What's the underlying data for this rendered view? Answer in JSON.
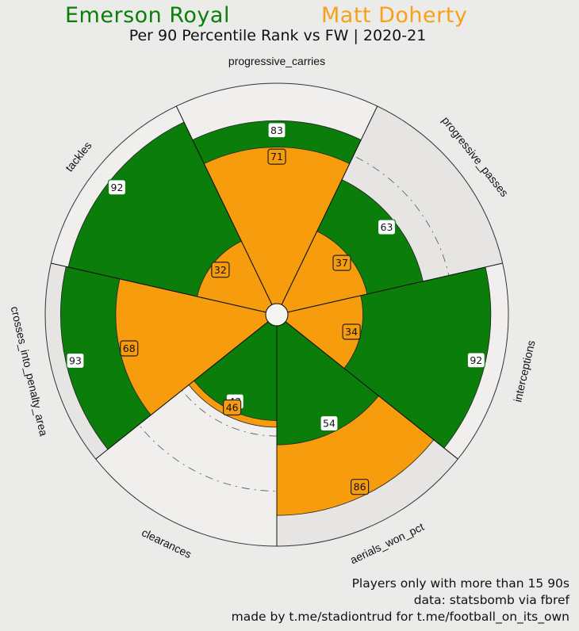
{
  "header": {
    "player1": "Emerson Royal",
    "player2": "Matt Doherty",
    "subtitle": "Per 90 Percentile Rank vs FW | 2020-21"
  },
  "footer": {
    "line1": "Players only with more than 15 90s",
    "line2": "data: statsbomb via fbref",
    "line3": "made by t.me/stadiontrud for t.me/football_on_its_own"
  },
  "colors": {
    "player1": "#0a7d0a",
    "player2": "#f79c0c",
    "background": "#ebebe9"
  },
  "chart_data": {
    "type": "polar-bar",
    "title": "Per 90 Percentile Rank vs FW | 2020-21",
    "categories": [
      "progressive_carries",
      "progressive_passes",
      "interceptions",
      "aerials_won_pct",
      "clearances",
      "crosses_into_penalty_area",
      "tackles"
    ],
    "series": [
      {
        "name": "Emerson Royal",
        "values": [
          83,
          63,
          92,
          54,
          43,
          93,
          92
        ]
      },
      {
        "name": "Matt Doherty",
        "values": [
          71,
          37,
          34,
          86,
          46,
          68,
          32
        ]
      }
    ],
    "rlim": [
      0,
      100
    ]
  }
}
